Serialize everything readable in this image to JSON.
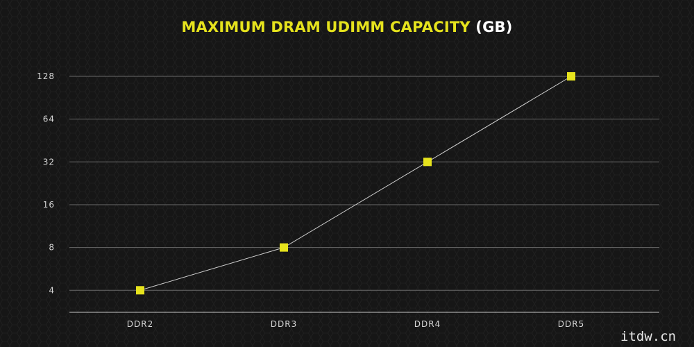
{
  "chart_data": {
    "type": "line",
    "title": "MAXIMUM DRAM UDIMM CAPACITY",
    "title_unit": "(GB)",
    "categories": [
      "DDR2",
      "DDR3",
      "DDR4",
      "DDR5"
    ],
    "series": [
      {
        "values": [
          4,
          8,
          32,
          128
        ]
      }
    ],
    "y_scale": "log2",
    "y_ticks": [
      4,
      8,
      16,
      32,
      64,
      128
    ],
    "ylim": [
      2.8,
      128
    ],
    "xlabel": "",
    "ylabel": "",
    "grid": true,
    "legend": "none",
    "colors": {
      "title": "#e6e31d",
      "title_unit": "#ffffff",
      "marker": "#e6e31d",
      "line": "#cfcfcf",
      "grid": "#6a6a6a",
      "axis": "#c8c8c8",
      "background": "#161616"
    }
  },
  "watermark": "itdw.cn"
}
